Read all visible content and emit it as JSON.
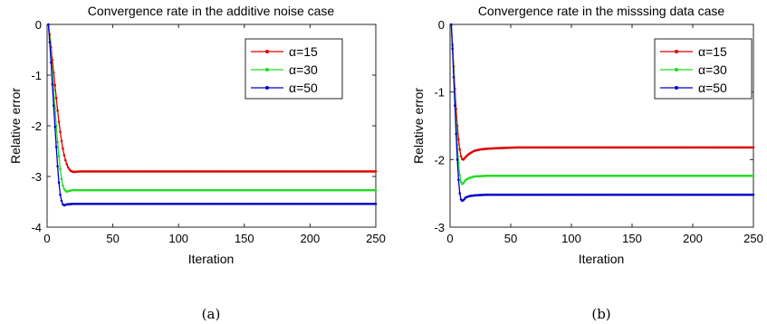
{
  "chart_data": [
    {
      "type": "line",
      "title": "Convergence rate in the additive noise case",
      "xlabel": "Iteration",
      "ylabel": "Relative error",
      "caption": "(a)",
      "xlim": [
        0,
        250
      ],
      "ylim": [
        -4,
        0
      ],
      "xticks": [
        "0",
        "50",
        "100",
        "150",
        "200",
        "250"
      ],
      "yticks": [
        "0",
        "-1",
        "-2",
        "-3",
        "-4"
      ],
      "legend_placement": "top-right",
      "grid": false,
      "series": [
        {
          "name": "α=15",
          "color": "#dd0000",
          "points": [
            [
              1,
              0
            ],
            [
              2,
              -0.2
            ],
            [
              3,
              -0.45
            ],
            [
              4,
              -0.7
            ],
            [
              5,
              -0.95
            ],
            [
              6,
              -1.2
            ],
            [
              7,
              -1.45
            ],
            [
              8,
              -1.7
            ],
            [
              9,
              -1.92
            ],
            [
              10,
              -2.12
            ],
            [
              11,
              -2.3
            ],
            [
              12,
              -2.45
            ],
            [
              13,
              -2.58
            ],
            [
              14,
              -2.68
            ],
            [
              15,
              -2.76
            ],
            [
              16,
              -2.82
            ],
            [
              17,
              -2.86
            ],
            [
              18,
              -2.89
            ],
            [
              20,
              -2.91
            ],
            [
              25,
              -2.9
            ],
            [
              250,
              -2.9
            ]
          ]
        },
        {
          "name": "α=30",
          "color": "#22dd22",
          "points": [
            [
              1,
              0
            ],
            [
              2,
              -0.28
            ],
            [
              3,
              -0.6
            ],
            [
              4,
              -0.95
            ],
            [
              5,
              -1.3
            ],
            [
              6,
              -1.65
            ],
            [
              7,
              -2.0
            ],
            [
              8,
              -2.32
            ],
            [
              9,
              -2.6
            ],
            [
              10,
              -2.85
            ],
            [
              11,
              -3.05
            ],
            [
              12,
              -3.18
            ],
            [
              13,
              -3.25
            ],
            [
              14,
              -3.28
            ],
            [
              15,
              -3.3
            ],
            [
              17,
              -3.28
            ],
            [
              20,
              -3.27
            ],
            [
              250,
              -3.27
            ]
          ]
        },
        {
          "name": "α=50",
          "color": "#0000cc",
          "points": [
            [
              1,
              0
            ],
            [
              2,
              -0.35
            ],
            [
              3,
              -0.75
            ],
            [
              4,
              -1.18
            ],
            [
              5,
              -1.6
            ],
            [
              6,
              -2.02
            ],
            [
              7,
              -2.42
            ],
            [
              8,
              -2.8
            ],
            [
              9,
              -3.12
            ],
            [
              10,
              -3.36
            ],
            [
              11,
              -3.48
            ],
            [
              12,
              -3.55
            ],
            [
              13,
              -3.57
            ],
            [
              15,
              -3.55
            ],
            [
              20,
              -3.54
            ],
            [
              250,
              -3.54
            ]
          ]
        }
      ]
    },
    {
      "type": "line",
      "title": "Convergence rate in the misssing data case",
      "xlabel": "Iteration",
      "ylabel": "Relative error",
      "caption": "(b)",
      "xlim": [
        0,
        250
      ],
      "ylim": [
        -3,
        0
      ],
      "xticks": [
        "0",
        "50",
        "100",
        "150",
        "200",
        "250"
      ],
      "yticks": [
        "0",
        "-1",
        "-2",
        "-3"
      ],
      "legend_placement": "top-right",
      "grid": false,
      "series": [
        {
          "name": "α=15",
          "color": "#dd0000",
          "points": [
            [
              1,
              0
            ],
            [
              2,
              -0.3
            ],
            [
              3,
              -0.62
            ],
            [
              4,
              -0.95
            ],
            [
              5,
              -1.25
            ],
            [
              6,
              -1.5
            ],
            [
              7,
              -1.7
            ],
            [
              8,
              -1.85
            ],
            [
              9,
              -1.95
            ],
            [
              10,
              -1.99
            ],
            [
              11,
              -2.0
            ],
            [
              12,
              -1.98
            ],
            [
              14,
              -1.94
            ],
            [
              17,
              -1.9
            ],
            [
              20,
              -1.87
            ],
            [
              25,
              -1.85
            ],
            [
              30,
              -1.84
            ],
            [
              40,
              -1.83
            ],
            [
              55,
              -1.82
            ],
            [
              250,
              -1.82
            ]
          ]
        },
        {
          "name": "α=30",
          "color": "#22dd22",
          "points": [
            [
              1,
              0
            ],
            [
              2,
              -0.33
            ],
            [
              3,
              -0.7
            ],
            [
              4,
              -1.08
            ],
            [
              5,
              -1.45
            ],
            [
              6,
              -1.78
            ],
            [
              7,
              -2.05
            ],
            [
              8,
              -2.23
            ],
            [
              9,
              -2.33
            ],
            [
              10,
              -2.36
            ],
            [
              11,
              -2.35
            ],
            [
              13,
              -2.3
            ],
            [
              16,
              -2.27
            ],
            [
              20,
              -2.25
            ],
            [
              30,
              -2.24
            ],
            [
              250,
              -2.24
            ]
          ]
        },
        {
          "name": "α=50",
          "color": "#0000cc",
          "points": [
            [
              1,
              0
            ],
            [
              2,
              -0.36
            ],
            [
              3,
              -0.78
            ],
            [
              4,
              -1.2
            ],
            [
              5,
              -1.62
            ],
            [
              6,
              -2.0
            ],
            [
              7,
              -2.3
            ],
            [
              8,
              -2.5
            ],
            [
              9,
              -2.59
            ],
            [
              10,
              -2.61
            ],
            [
              11,
              -2.6
            ],
            [
              13,
              -2.56
            ],
            [
              16,
              -2.54
            ],
            [
              20,
              -2.53
            ],
            [
              30,
              -2.52
            ],
            [
              250,
              -2.52
            ]
          ]
        }
      ]
    }
  ]
}
